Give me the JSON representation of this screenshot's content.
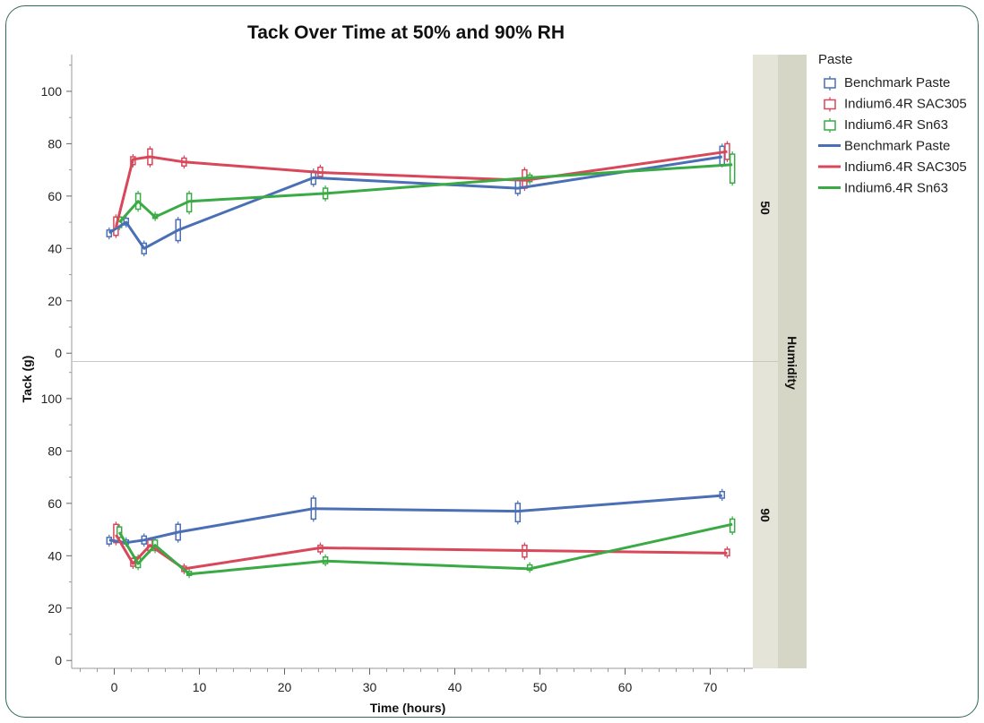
{
  "chart_data": {
    "type": "line",
    "title": "Tack Over Time at 50% and 90% RH",
    "xlabel": "Time (hours)",
    "ylabel": "Tack (g)",
    "xlim": [
      -5,
      75
    ],
    "xticks": [
      0,
      10,
      20,
      30,
      40,
      50,
      60,
      70
    ],
    "ylim": [
      -3,
      114
    ],
    "yticks": [
      0,
      20,
      40,
      60,
      80,
      100
    ],
    "facet_label": "Humidity",
    "legend": {
      "title": "Paste",
      "box_entries": [
        "Benchmark Paste",
        "Indium6.4R SAC305",
        "Indium6.4R Sn63"
      ],
      "line_entries": [
        "Benchmark Paste",
        "Indium6.4R SAC305",
        "Indium6.4R Sn63"
      ],
      "placement": "right"
    },
    "colors": {
      "Benchmark Paste": "#4a6fb5",
      "Indium6.4R SAC305": "#d9475a",
      "Indium6.4R Sn63": "#3aaa45"
    },
    "panels": [
      {
        "humidity": "50",
        "series": [
          {
            "name": "Benchmark Paste",
            "x": [
              -0.6,
              1.4,
              3.5,
              7.5,
              23.4,
              47.4,
              71.4
            ],
            "y": [
              46,
              50,
              40,
              47,
              67,
              63,
              75
            ],
            "box": [
              [
                44.5,
                47
              ],
              [
                49,
                51.5
              ],
              [
                38,
                42
              ],
              [
                43,
                51
              ],
              [
                64.5,
                69.5
              ],
              [
                61,
                66
              ],
              [
                72,
                79
              ]
            ]
          },
          {
            "name": "Indium6.4R SAC305",
            "x": [
              0.2,
              2.2,
              4.2,
              8.2,
              24.2,
              48.2,
              72.0
            ],
            "y": [
              48,
              74,
              75,
              73,
              69,
              66,
              77
            ],
            "box": [
              [
                45,
                52
              ],
              [
                72,
                75
              ],
              [
                72,
                78
              ],
              [
                71.5,
                74.5
              ],
              [
                67.5,
                71
              ],
              [
                63,
                70
              ],
              [
                74,
                80
              ]
            ]
          },
          {
            "name": "Indium6.4R Sn63",
            "x": [
              0.6,
              2.8,
              4.8,
              8.8,
              24.8,
              48.8,
              72.6
            ],
            "y": [
              50,
              58,
              52,
              58,
              61,
              67,
              72
            ],
            "box": [
              [
                48,
                52
              ],
              [
                55,
                61
              ],
              [
                51.5,
                53
              ],
              [
                54,
                61
              ],
              [
                59,
                63
              ],
              [
                65.5,
                68
              ],
              [
                65,
                76
              ]
            ]
          }
        ]
      },
      {
        "humidity": "90",
        "series": [
          {
            "name": "Benchmark Paste",
            "x": [
              -0.6,
              1.4,
              3.5,
              7.5,
              23.4,
              47.4,
              71.4
            ],
            "y": [
              46,
              45,
              46,
              49,
              58,
              57,
              63
            ],
            "box": [
              [
                44.5,
                47
              ],
              [
                44.5,
                46
              ],
              [
                44.5,
                47.5
              ],
              [
                46,
                52
              ],
              [
                54,
                62
              ],
              [
                53,
                60
              ],
              [
                62,
                64.5
              ]
            ]
          },
          {
            "name": "Indium6.4R SAC305",
            "x": [
              0.2,
              2.2,
              4.2,
              8.2,
              24.2,
              48.2,
              72.0
            ],
            "y": [
              48,
              37,
              44,
              35,
              43,
              42,
              41
            ],
            "box": [
              [
                45,
                52
              ],
              [
                36,
                39
              ],
              [
                42,
                46
              ],
              [
                34,
                36
              ],
              [
                41.5,
                44
              ],
              [
                39.5,
                44
              ],
              [
                40,
                42.5
              ]
            ]
          },
          {
            "name": "Indium6.4R Sn63",
            "x": [
              0.6,
              2.8,
              4.8,
              8.8,
              24.8,
              48.8,
              72.6
            ],
            "y": [
              49,
              37,
              44,
              33,
              38,
              35,
              52
            ],
            "box": [
              [
                47,
                51
              ],
              [
                35.5,
                39.5
              ],
              [
                42,
                46
              ],
              [
                32.5,
                34
              ],
              [
                37,
                39.5
              ],
              [
                34.5,
                36.5
              ],
              [
                49,
                54
              ]
            ]
          }
        ]
      }
    ]
  }
}
